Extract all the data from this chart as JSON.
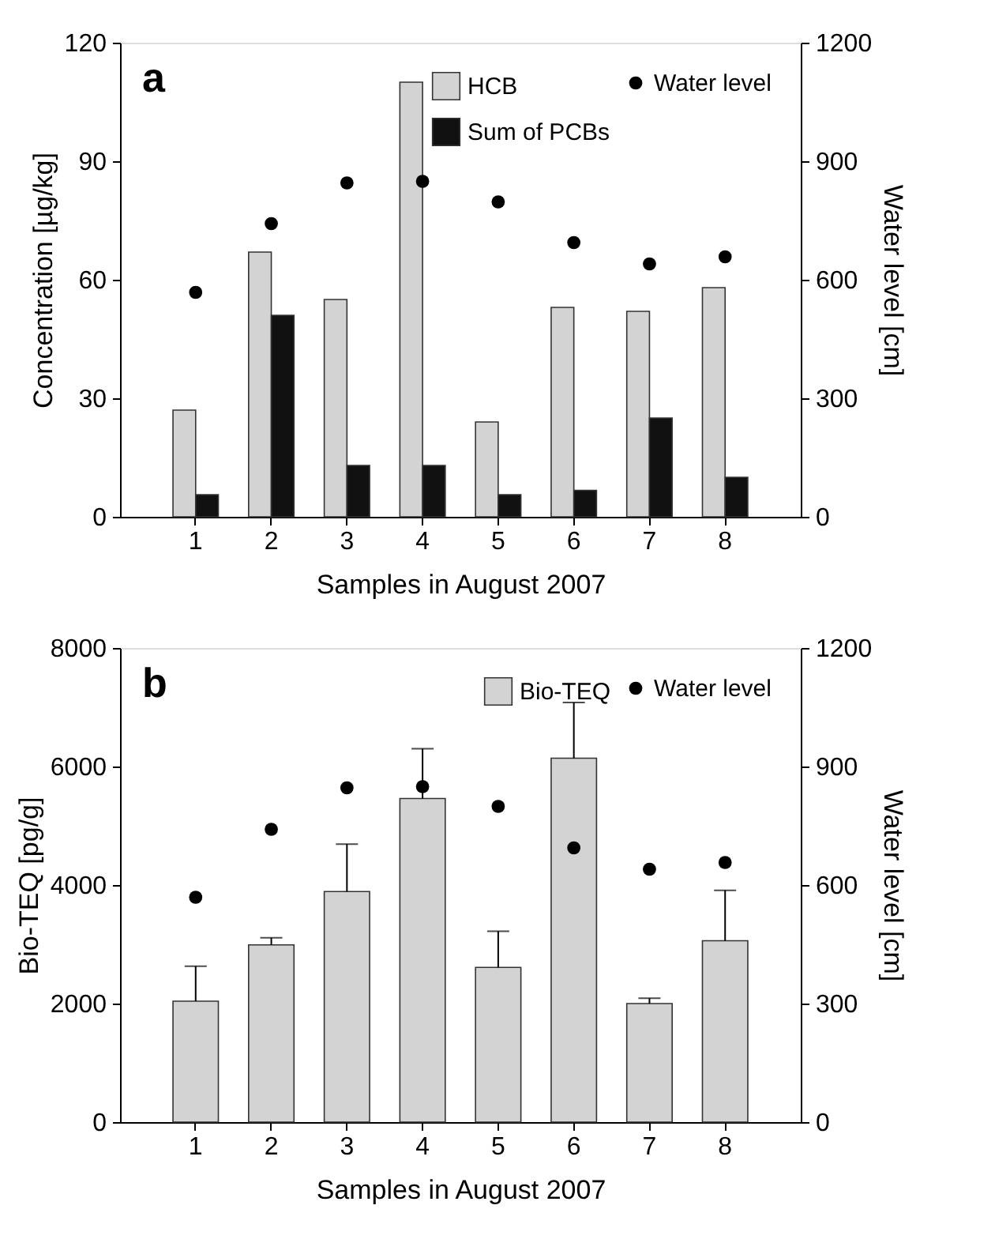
{
  "chart_data": [
    {
      "type": "bar",
      "title": "a",
      "xlabel": "Samples in August 2007",
      "ylabel": "Concentration [µg/kg]",
      "y2label": "Water level [cm]",
      "categories": [
        "1",
        "2",
        "3",
        "4",
        "5",
        "6",
        "7",
        "8"
      ],
      "ylim": [
        0,
        120
      ],
      "yticks": [
        0,
        30,
        60,
        90,
        120
      ],
      "y2lim": [
        0,
        1200
      ],
      "y2ticks": [
        0,
        300,
        600,
        900,
        1200
      ],
      "legend": "top right",
      "series": [
        {
          "name": "Water level",
          "type": "scatter",
          "axis": "y2",
          "marker": "circle",
          "color": "#000000",
          "values": [
            568,
            742,
            845,
            849,
            797,
            694,
            640,
            658
          ]
        },
        {
          "name": "HCB",
          "color": "#d3d3d3",
          "values": [
            27,
            67,
            55,
            110,
            24,
            53,
            52,
            58
          ]
        },
        {
          "name": "Sum of PCBs",
          "color": "#111111",
          "values": [
            5.6,
            51,
            13,
            13,
            5.6,
            6.7,
            25,
            10
          ]
        }
      ]
    },
    {
      "type": "bar",
      "title": "b",
      "xlabel": "Samples in August 2007",
      "ylabel": "Bio-TEQ [pg/g]",
      "y2label": "Water level [cm]",
      "categories": [
        "1",
        "2",
        "3",
        "4",
        "5",
        "6",
        "7",
        "8"
      ],
      "ylim": [
        0,
        8000
      ],
      "yticks": [
        0,
        2000,
        4000,
        6000,
        8000
      ],
      "y2lim": [
        0,
        1200
      ],
      "y2ticks": [
        0,
        300,
        600,
        900,
        1200
      ],
      "legend": "top right",
      "series": [
        {
          "name": "Water level",
          "type": "scatter",
          "axis": "y2",
          "marker": "circle",
          "color": "#000000",
          "values": [
            569,
            741,
            846,
            849,
            799,
            694,
            640,
            657
          ]
        },
        {
          "name": "Bio-TEQ",
          "color": "#d3d3d3",
          "values": [
            2040,
            2990,
            3890,
            5460,
            2610,
            6140,
            2000,
            3060
          ],
          "errors": [
            [
              2040,
              2630
            ],
            [
              2990,
              3110
            ],
            [
              3890,
              4690
            ],
            [
              5460,
              6300
            ],
            [
              2610,
              3220
            ],
            [
              6140,
              7080
            ],
            [
              2000,
              2090
            ],
            [
              3060,
              3910
            ]
          ]
        }
      ]
    }
  ]
}
